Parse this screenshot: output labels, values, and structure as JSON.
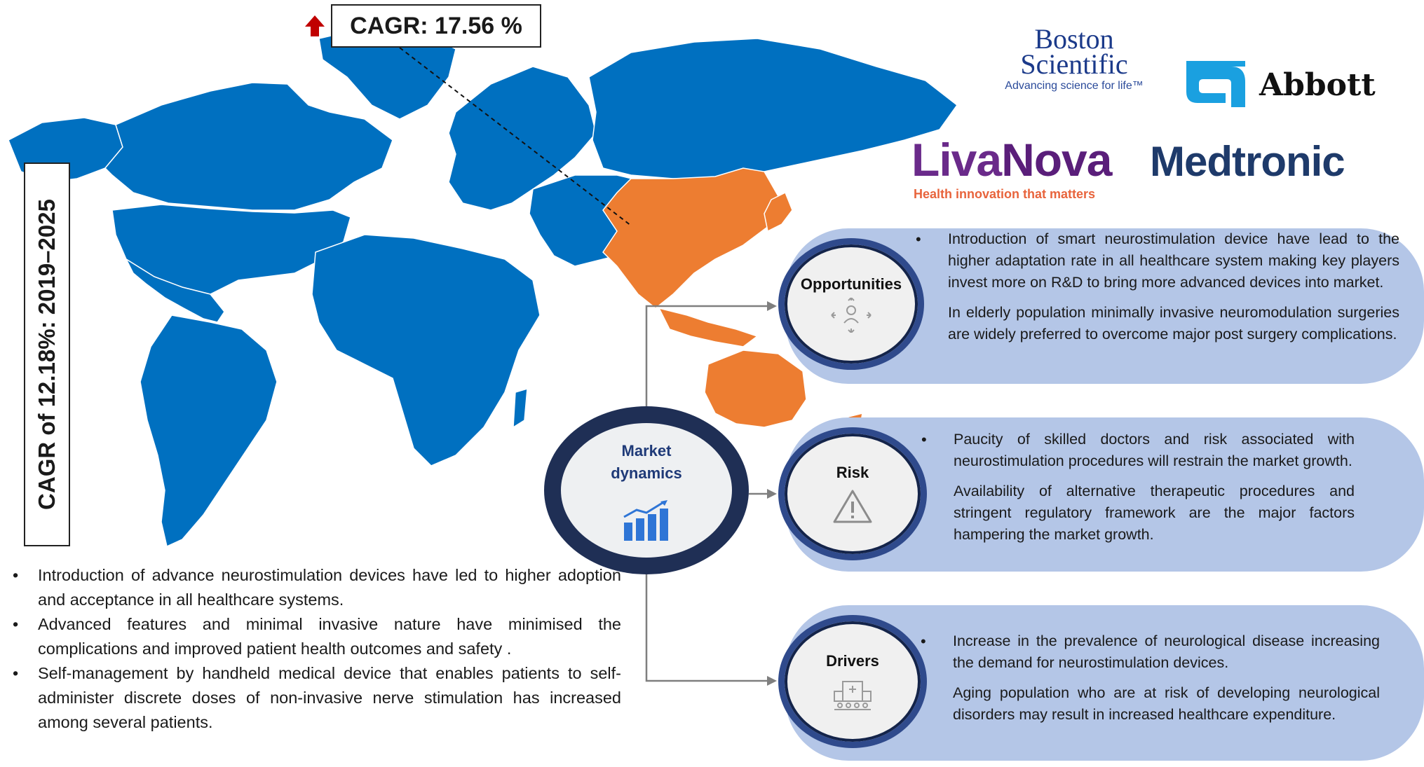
{
  "cagr": {
    "apac": "CAGR: 17.56 %",
    "global": "CAGR of 12.18%: 2019–2025"
  },
  "colors": {
    "map_world": "#0070c0",
    "map_apac": "#ed7d31",
    "panel_fill": "#b4c6e7",
    "circle_border": "#2f4a8c",
    "arrow_up": "#c00000"
  },
  "logos": {
    "boston_line1": "Boston",
    "boston_line2": "Scientific",
    "boston_tagline": "Advancing science for life™",
    "abbott": "Abbott",
    "livanova_a": "Liva",
    "livanova_b": "Nova",
    "livanova_tagline": "Health innovation that matters",
    "medtronic": "Medtronic"
  },
  "market": {
    "label_line1": "Market",
    "label_line2": "dynamics",
    "icon": "bar-chart-growth-icon"
  },
  "opportunities": {
    "title": "Opportunities",
    "icon": "network-person-icon",
    "bullets": [
      "Introduction of smart neurostimulation device have lead to the higher adaptation rate in all healthcare system making key players invest more on R&D to bring more advanced devices into market.",
      "In elderly population minimally invasive neuromodulation surgeries are widely preferred to overcome major post surgery complications."
    ]
  },
  "risk": {
    "title": "Risk",
    "icon": "warning-triangle-icon",
    "bullets": [
      "Paucity of skilled doctors and risk associated with neurostimulation procedures will  restrain the market growth.",
      "Availability of alternative therapeutic procedures and stringent regulatory framework are the major factors hampering the market growth."
    ]
  },
  "drivers": {
    "title": "Drivers",
    "icon": "hospital-building-icon",
    "bullets": [
      "Increase in the prevalence of neurological disease increasing the demand for neurostimulation devices.",
      "Aging population who are at risk of developing neurological disorders may result in increased healthcare expenditure."
    ]
  },
  "left_bullets": [
    "Introduction of advance neurostimulation devices have led to higher adoption and acceptance in all healthcare systems.",
    "Advanced features and minimal invasive nature have  minimised  the complications and improved patient health outcomes and safety .",
    "Self-management by handheld medical device that enables patients to self-administer discrete doses of non-invasive nerve stimulation has increased among several patients."
  ]
}
